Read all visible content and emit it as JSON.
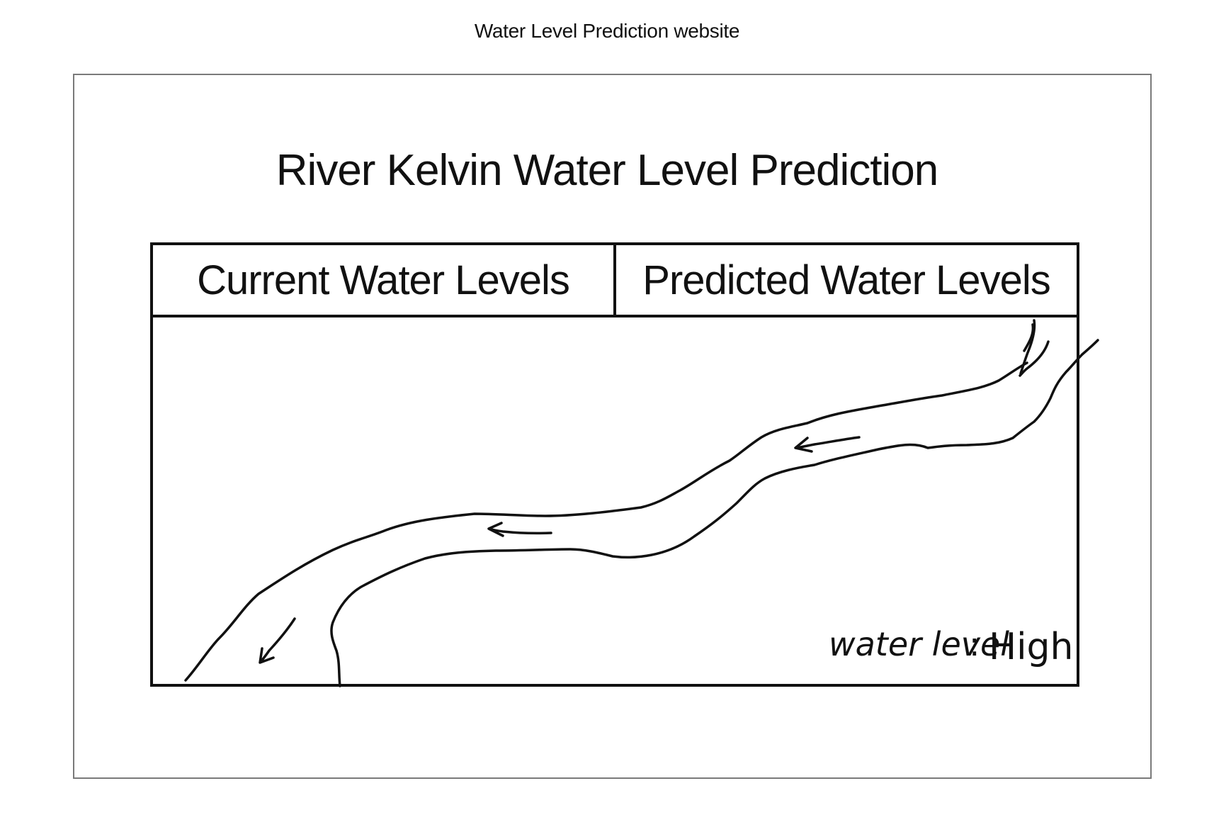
{
  "window": {
    "caption": "Water Level Prediction website"
  },
  "header": {
    "title": "River Kelvin Water Level Prediction"
  },
  "tabs": [
    {
      "label": "Current Water Levels"
    },
    {
      "label": "Predicted Water Levels"
    }
  ],
  "map": {
    "status_label": "water level",
    "status_separator": ":",
    "status_value": "High"
  }
}
